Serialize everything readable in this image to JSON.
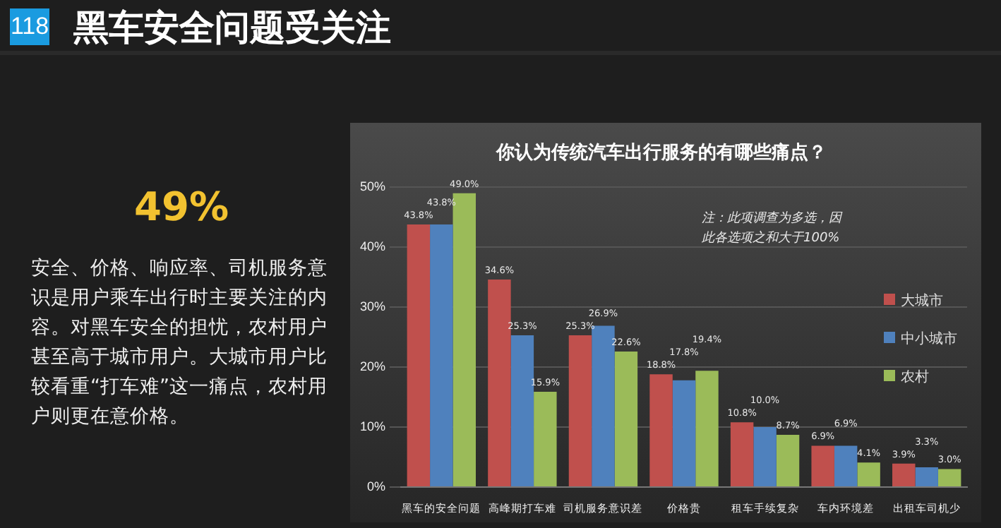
{
  "chart_data": {
    "type": "bar",
    "title": "你认为传统汽车出行服务的有哪些痛点？",
    "categories": [
      "黑车的安全问题",
      "高峰期打车难",
      "司机服务意识差",
      "价格贵",
      "租车手续复杂",
      "车内环境差",
      "出租车司机少"
    ],
    "series": [
      {
        "name": "大城市",
        "color": "#c0504d",
        "values": [
          43.8,
          34.6,
          25.3,
          18.8,
          10.8,
          6.9,
          3.9
        ],
        "value_labels": [
          "43.8%",
          "34.6%",
          "25.3%",
          "18.8%",
          "10.8%",
          "6.9%",
          "3.9%"
        ]
      },
      {
        "name": "中小城市",
        "color": "#4f81bd",
        "values": [
          43.8,
          25.3,
          26.9,
          17.8,
          10.0,
          6.9,
          3.3
        ],
        "value_labels": [
          "43.8%",
          "25.3%",
          "26.9%",
          "17.8%",
          "10.0%",
          "6.9%",
          "3.3%"
        ]
      },
      {
        "name": "农村",
        "color": "#9bbb59",
        "values": [
          49.0,
          15.9,
          22.6,
          19.4,
          8.7,
          4.1,
          3.0
        ],
        "value_labels": [
          "49.0%",
          "15.9%",
          "22.6%",
          "19.4%",
          "8.7%",
          "4.1%",
          "3.0%"
        ]
      }
    ],
    "ylim": [
      0,
      50
    ],
    "yticks": [
      {
        "value": 0,
        "label": "0%"
      },
      {
        "value": 10,
        "label": "10%"
      },
      {
        "value": 20,
        "label": "20%"
      },
      {
        "value": 30,
        "label": "30%"
      },
      {
        "value": 40,
        "label": "40%"
      },
      {
        "value": 50,
        "label": "50%"
      }
    ],
    "grid": "y",
    "legend": "right",
    "annotations": [
      "118",
      "黑车安全问题受关注",
      "49%",
      "安全、价格、响应率、司机服务意识是用户乘车出行时主要关注的内容。对黑车安全的担忧，农村用户甚至高于城市用户。大城市用户比较看重“打车难”这一痛点，农村用户则更在意价格。",
      "注：此项调查为多选，因此各选项之和大于100%"
    ]
  }
}
